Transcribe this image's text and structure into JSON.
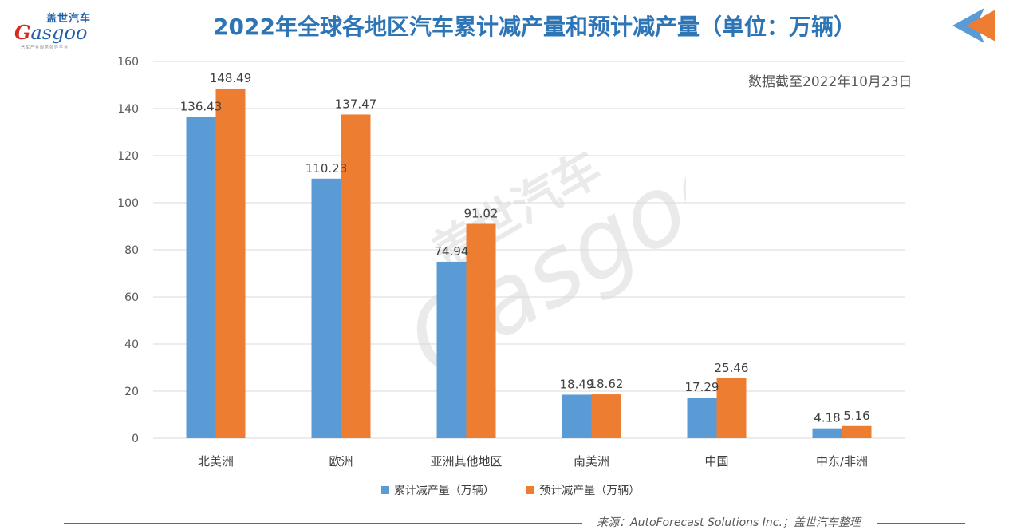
{
  "logo": {
    "cn": "盖世汽车",
    "en_g": "G",
    "en_rest": "asgoo",
    "sub": "汽车产业服务领导平台"
  },
  "header": {
    "title": "2022年全球各地区汽车累计减产量和预计减产量（单位：万辆）"
  },
  "note": "数据截至2022年10月23日",
  "watermark": {
    "text": "盖世汽车",
    "brand": "Gasgoo"
  },
  "source": "来源：AutoForecast Solutions Inc.；盖世汽车整理",
  "colors": {
    "accent": "#2e75b6",
    "series1": "#5b9bd5",
    "series2": "#ed7d31",
    "logo_red": "#d52b1e"
  },
  "chart_data": {
    "type": "bar",
    "title": "2022年全球各地区汽车累计减产量和预计减产量（单位：万辆）",
    "categories": [
      "北美洲",
      "欧洲",
      "亚洲其他地区",
      "南美洲",
      "中国",
      "中东/非洲"
    ],
    "series": [
      {
        "name": "累计减产量（万辆）",
        "values": [
          136.43,
          110.23,
          74.94,
          18.49,
          17.29,
          4.18
        ],
        "labels": [
          "136.43",
          "110.23",
          "74.94",
          "18.49",
          "17.29",
          "4.18"
        ]
      },
      {
        "name": "预计减产量（万辆）",
        "values": [
          148.49,
          137.47,
          91.02,
          18.62,
          25.46,
          5.16
        ],
        "labels": [
          "148.49",
          "137.47",
          "91.02",
          "18.62",
          "25.46",
          "5.16"
        ]
      }
    ],
    "ylim": [
      0,
      160
    ],
    "yticks": [
      0,
      20,
      40,
      60,
      80,
      100,
      120,
      140,
      160
    ],
    "xlabel": "",
    "ylabel": "",
    "grid": true,
    "legend": "bottom"
  }
}
